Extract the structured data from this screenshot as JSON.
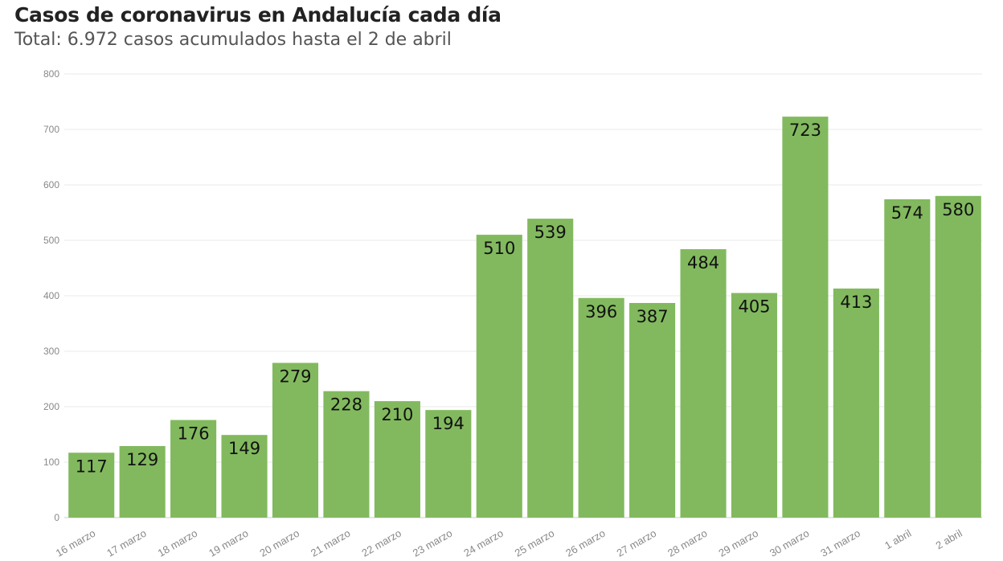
{
  "chart_data": {
    "type": "bar",
    "title": "Casos de coronavirus en Andalucía cada día",
    "subtitle": "Total: 6.972 casos acumulados hasta el 2 de abril",
    "xlabel": "",
    "ylabel": "",
    "ylim": [
      0,
      800
    ],
    "yticks": [
      0,
      100,
      200,
      300,
      400,
      500,
      600,
      700,
      800
    ],
    "categories": [
      "16 marzo",
      "17 marzo",
      "18 marzo",
      "19 marzo",
      "20 marzo",
      "21 marzo",
      "22 marzo",
      "23 marzo",
      "24 marzo",
      "25 marzo",
      "26 marzo",
      "27 marzo",
      "28 marzo",
      "29 marzo",
      "30 marzo",
      "31 marzo",
      "1 abril",
      "2 abril"
    ],
    "values": [
      117,
      129,
      176,
      149,
      279,
      228,
      210,
      194,
      510,
      539,
      396,
      387,
      484,
      405,
      723,
      413,
      574,
      580
    ],
    "bar_color": "#82b95e",
    "grid": true
  }
}
